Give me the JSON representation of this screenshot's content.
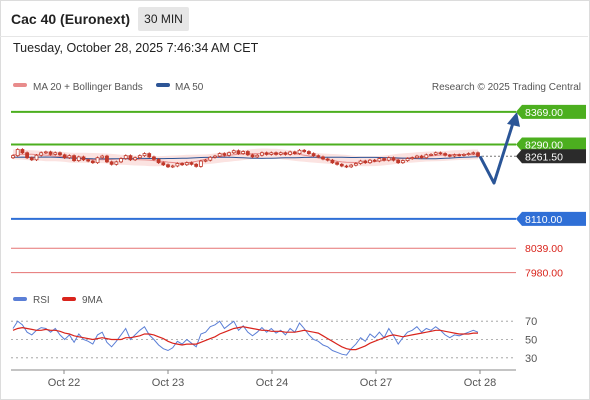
{
  "header": {
    "title": "Cac 40 (Euronext)",
    "timeframe_button": "30 MIN"
  },
  "timestamp": "Tuesday, October 28, 2025 7:46:34 AM CET",
  "credit": "Research © 2025 Trading Central",
  "legend": {
    "ma20_bb": "MA 20 + Bollinger Bands",
    "ma50": "MA 50",
    "rsi": "RSI",
    "ma9": "9MA"
  },
  "colors": {
    "candle": "#c0392b",
    "green_level": "#4caf1f",
    "blue_level": "#2f6fd6",
    "red_level": "#e57373",
    "current_tag": "#2b2b2b",
    "arrow": "#2a5597",
    "bb_fill": "#fbe3e1",
    "ma20": "#e88c8c",
    "ma50": "#2d5596",
    "rsi_line": "#5b7fd6",
    "ma9_line": "#d9241c"
  },
  "price_levels": [
    {
      "label": "8369.00",
      "value": 8369.0,
      "type": "resistance"
    },
    {
      "label": "8290.00",
      "value": 8290.0,
      "type": "resistance"
    },
    {
      "label": "8110.00",
      "value": 8110.0,
      "type": "pivot"
    },
    {
      "label": "8039.00",
      "value": 8039.0,
      "type": "support"
    },
    {
      "label": "7980.00",
      "value": 7980.0,
      "type": "support"
    }
  ],
  "current_price": {
    "label": "8261.50",
    "value": 8261.5
  },
  "chart_data": {
    "type": "candlestick",
    "x_labels": [
      "Oct 22",
      "Oct 23",
      "Oct 24",
      "Oct 27",
      "Oct 28"
    ],
    "ylim": [
      7962,
      8405
    ],
    "closes": [
      8263,
      8278,
      8270,
      8258,
      8253,
      8264,
      8270,
      8272,
      8266,
      8270,
      8265,
      8258,
      8263,
      8251,
      8260,
      8253,
      8250,
      8246,
      8258,
      8262,
      8248,
      8242,
      8248,
      8256,
      8263,
      8253,
      8258,
      8263,
      8268,
      8260,
      8254,
      8246,
      8241,
      8236,
      8238,
      8244,
      8241,
      8246,
      8242,
      8237,
      8250,
      8252,
      8259,
      8262,
      8268,
      8264,
      8270,
      8275,
      8268,
      8273,
      8265,
      8260,
      8264,
      8270,
      8266,
      8270,
      8266,
      8270,
      8266,
      8272,
      8268,
      8276,
      8273,
      8268,
      8263,
      8260,
      8255,
      8252,
      8246,
      8242,
      8238,
      8236,
      8240,
      8244,
      8250,
      8246,
      8252,
      8250,
      8256,
      8252,
      8258,
      8252,
      8246,
      8251,
      8256,
      8258,
      8262,
      8258,
      8265,
      8266,
      8270,
      8268,
      8264,
      8262,
      8265,
      8264,
      8266,
      8268,
      8270,
      8262
    ],
    "opens": [
      8258,
      8263,
      8278,
      8270,
      8258,
      8253,
      8264,
      8270,
      8272,
      8266,
      8270,
      8265,
      8258,
      8263,
      8251,
      8260,
      8253,
      8250,
      8246,
      8258,
      8262,
      8248,
      8242,
      8248,
      8256,
      8263,
      8253,
      8258,
      8263,
      8268,
      8260,
      8254,
      8246,
      8241,
      8236,
      8238,
      8244,
      8241,
      8246,
      8242,
      8237,
      8250,
      8252,
      8259,
      8262,
      8268,
      8264,
      8270,
      8275,
      8268,
      8273,
      8265,
      8260,
      8264,
      8270,
      8266,
      8270,
      8266,
      8270,
      8266,
      8272,
      8268,
      8276,
      8273,
      8268,
      8263,
      8260,
      8255,
      8252,
      8246,
      8242,
      8238,
      8236,
      8240,
      8244,
      8250,
      8246,
      8252,
      8250,
      8256,
      8252,
      8258,
      8252,
      8246,
      8251,
      8256,
      8258,
      8262,
      8258,
      8265,
      8266,
      8270,
      8268,
      8264,
      8262,
      8265,
      8264,
      8266,
      8268,
      8270
    ],
    "projection": [
      8261.5,
      8245,
      8369
    ],
    "rsi": {
      "ylim": [
        20,
        80
      ],
      "ticks": [
        "70",
        "50",
        "30"
      ],
      "rsi_values": [
        62,
        70,
        66,
        58,
        55,
        60,
        63,
        62,
        58,
        62,
        55,
        50,
        55,
        47,
        56,
        50,
        48,
        45,
        55,
        58,
        47,
        42,
        48,
        55,
        62,
        50,
        55,
        60,
        64,
        55,
        50,
        44,
        40,
        38,
        41,
        48,
        45,
        50,
        46,
        42,
        56,
        58,
        64,
        66,
        70,
        62,
        66,
        70,
        60,
        65,
        58,
        54,
        58,
        63,
        58,
        62,
        57,
        60,
        55,
        62,
        58,
        68,
        62,
        55,
        50,
        48,
        44,
        42,
        38,
        36,
        34,
        33,
        40,
        45,
        52,
        48,
        56,
        52,
        58,
        52,
        62,
        54,
        45,
        52,
        58,
        60,
        64,
        58,
        62,
        60,
        64,
        60,
        55,
        52,
        55,
        54,
        56,
        58,
        60,
        58
      ],
      "ma9_values": [
        60,
        62,
        63,
        62,
        61,
        60,
        60,
        61,
        60,
        60,
        59,
        57,
        56,
        54,
        53,
        52,
        51,
        50,
        51,
        52,
        51,
        50,
        50,
        50,
        52,
        52,
        53,
        54,
        56,
        56,
        55,
        53,
        51,
        48,
        46,
        45,
        44,
        45,
        45,
        45,
        47,
        49,
        51,
        53,
        56,
        58,
        60,
        62,
        63,
        64,
        63,
        62,
        61,
        60,
        60,
        59,
        59,
        59,
        58,
        58,
        58,
        59,
        60,
        59,
        58,
        57,
        54,
        51,
        48,
        45,
        42,
        40,
        39,
        39,
        41,
        43,
        46,
        48,
        50,
        52,
        54,
        55,
        54,
        53,
        54,
        55,
        56,
        57,
        58,
        59,
        60,
        60,
        59,
        58,
        57,
        56,
        56,
        56,
        57,
        57
      ]
    }
  }
}
